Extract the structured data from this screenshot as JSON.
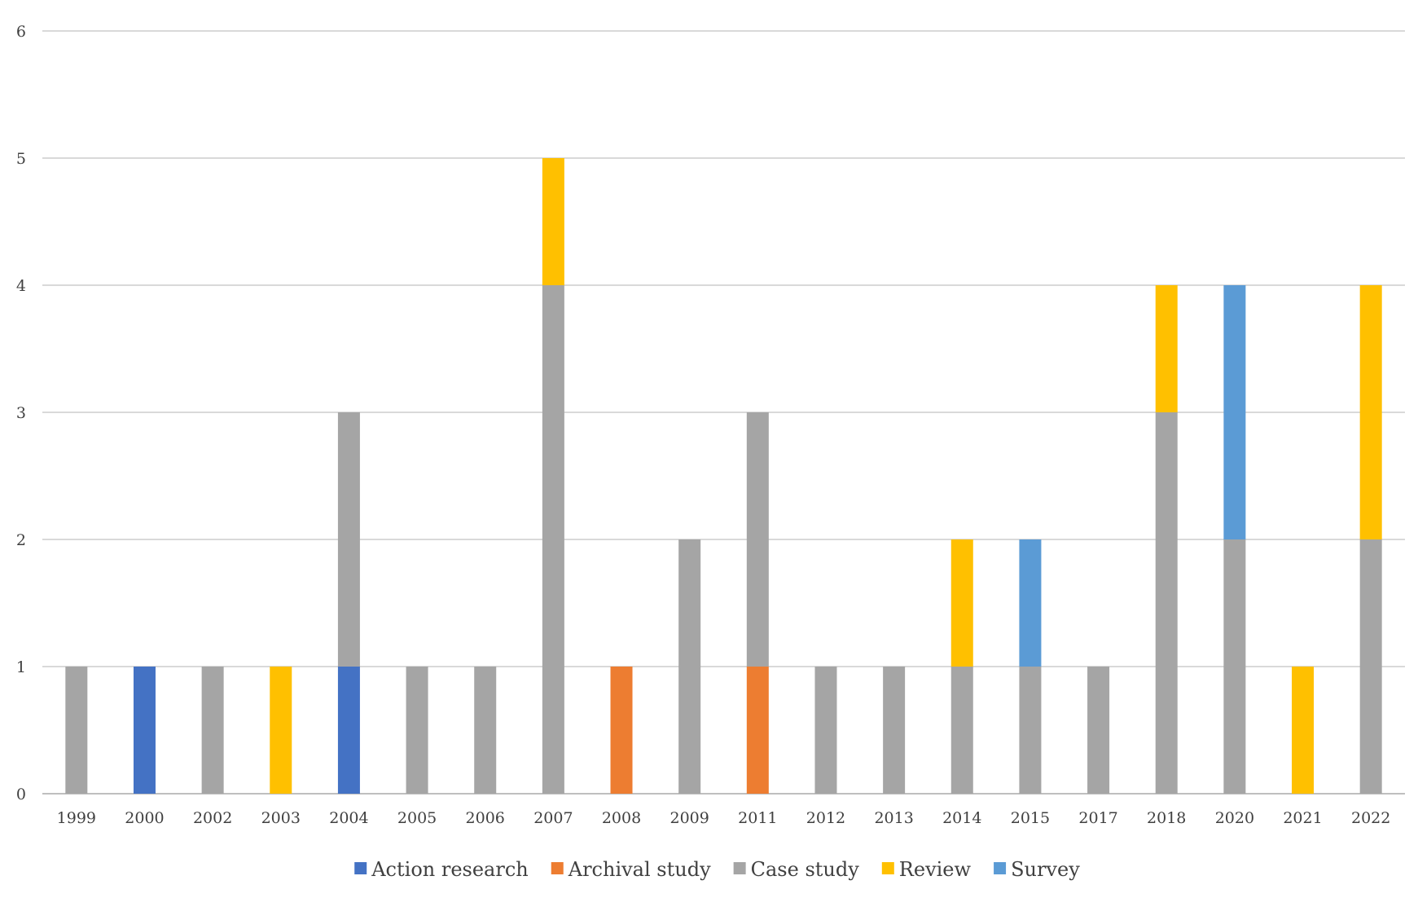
{
  "chart_data": {
    "type": "bar",
    "stacked": true,
    "title": "",
    "xlabel": "",
    "ylabel": "",
    "ylim": [
      0,
      6
    ],
    "yticks": [
      0,
      1,
      2,
      3,
      4,
      5,
      6
    ],
    "grid": true,
    "legend_position": "bottom",
    "categories": [
      "1999",
      "2000",
      "2002",
      "2003",
      "2004",
      "2005",
      "2006",
      "2007",
      "2008",
      "2009",
      "2011",
      "2012",
      "2013",
      "2014",
      "2015",
      "2017",
      "2018",
      "2020",
      "2021",
      "2022"
    ],
    "series": [
      {
        "name": "Action research",
        "color": "#4472C4",
        "values": [
          0,
          1,
          0,
          0,
          1,
          0,
          0,
          0,
          0,
          0,
          0,
          0,
          0,
          0,
          0,
          0,
          0,
          0,
          0,
          0
        ]
      },
      {
        "name": "Archival study",
        "color": "#ED7D31",
        "values": [
          0,
          0,
          0,
          0,
          0,
          0,
          0,
          0,
          1,
          0,
          1,
          0,
          0,
          0,
          0,
          0,
          0,
          0,
          0,
          0
        ]
      },
      {
        "name": "Case study",
        "color": "#A5A5A5",
        "values": [
          1,
          0,
          1,
          0,
          2,
          1,
          1,
          4,
          0,
          2,
          2,
          1,
          1,
          1,
          1,
          1,
          3,
          2,
          0,
          2
        ]
      },
      {
        "name": "Review",
        "color": "#FFC000",
        "values": [
          0,
          0,
          0,
          1,
          0,
          0,
          0,
          1,
          0,
          0,
          0,
          0,
          0,
          1,
          0,
          0,
          1,
          0,
          1,
          2
        ]
      },
      {
        "name": "Survey",
        "color": "#5B9BD5",
        "values": [
          0,
          0,
          0,
          0,
          0,
          0,
          0,
          0,
          0,
          0,
          0,
          0,
          0,
          0,
          1,
          0,
          0,
          2,
          0,
          0
        ]
      }
    ]
  }
}
